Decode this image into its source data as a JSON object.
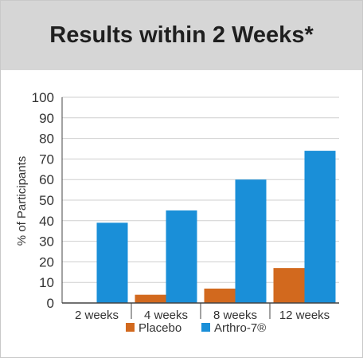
{
  "chart_data": {
    "type": "bar",
    "title": "Results within 2 Weeks*",
    "xlabel": "",
    "ylabel": "% of Participants",
    "ylim": [
      0,
      100
    ],
    "yticks": [
      0,
      10,
      20,
      30,
      40,
      50,
      60,
      70,
      80,
      90,
      100
    ],
    "categories": [
      "2 weeks",
      "4 weeks",
      "8 weeks",
      "12 weeks"
    ],
    "series": [
      {
        "name": "Placebo",
        "color": "#d2691e",
        "values": [
          0,
          4,
          7,
          17
        ]
      },
      {
        "name": "Arthro-7®",
        "color": "#1a8fd8",
        "values": [
          39,
          45,
          60,
          74
        ]
      }
    ],
    "grid": true,
    "legend_position": "bottom"
  }
}
